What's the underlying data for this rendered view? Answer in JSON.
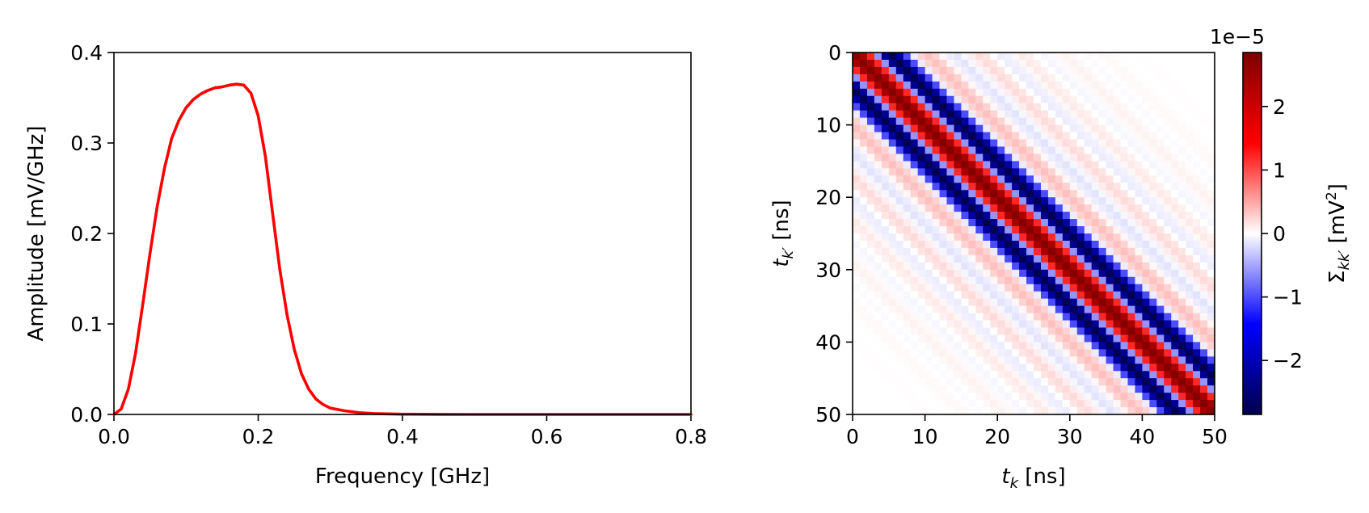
{
  "chart_data": [
    {
      "type": "line",
      "title": "",
      "xlabel": "Frequency [GHz]",
      "ylabel": "Amplitude [mV/GHz]",
      "xlim": [
        0.0,
        0.8
      ],
      "ylim": [
        0.0,
        0.4
      ],
      "xticks": [
        "0.0",
        "0.2",
        "0.4",
        "0.6",
        "0.8"
      ],
      "yticks": [
        "0.0",
        "0.1",
        "0.2",
        "0.3",
        "0.4"
      ],
      "grid": false,
      "series": [
        {
          "color": "#ff0000",
          "x": [
            0.0,
            0.01,
            0.02,
            0.03,
            0.04,
            0.05,
            0.06,
            0.07,
            0.08,
            0.09,
            0.1,
            0.11,
            0.12,
            0.13,
            0.14,
            0.15,
            0.16,
            0.17,
            0.18,
            0.19,
            0.2,
            0.21,
            0.22,
            0.23,
            0.24,
            0.25,
            0.26,
            0.27,
            0.28,
            0.29,
            0.3,
            0.32,
            0.34,
            0.36,
            0.38,
            0.4,
            0.45,
            0.5,
            0.6,
            0.7,
            0.8
          ],
          "y": [
            0.0,
            0.006,
            0.028,
            0.068,
            0.122,
            0.178,
            0.23,
            0.272,
            0.305,
            0.325,
            0.339,
            0.348,
            0.354,
            0.358,
            0.361,
            0.362,
            0.364,
            0.365,
            0.364,
            0.355,
            0.33,
            0.285,
            0.222,
            0.16,
            0.11,
            0.072,
            0.045,
            0.028,
            0.017,
            0.011,
            0.007,
            0.004,
            0.002,
            0.001,
            0.0006,
            0.0003,
            0.0001,
            0.0,
            0.0,
            0.0,
            0.0
          ]
        }
      ]
    },
    {
      "type": "heatmap",
      "title": "",
      "xlabel_base": "t",
      "xlabel_sub": "k",
      "xlabel_unit": " [ns]",
      "ylabel_base": "t",
      "ylabel_sub": "k′",
      "ylabel_unit": " [ns]",
      "xlim": [
        0,
        50
      ],
      "ylim": [
        50,
        0
      ],
      "xticks": [
        "0",
        "10",
        "20",
        "30",
        "40",
        "50"
      ],
      "yticks": [
        "0",
        "10",
        "20",
        "30",
        "40",
        "50"
      ],
      "colormap": "seismic",
      "colorbar": {
        "label_base": "Σ",
        "label_sub": "kk′",
        "label_unit_open": " [mV",
        "label_unit_sup": "2",
        "label_unit_close": "]",
        "scale_label": "1e−5",
        "range": [
          -2.85,
          2.85
        ],
        "ticks": [
          "−2",
          "−1",
          "0",
          "1",
          "2"
        ],
        "tick_values": [
          -2,
          -1,
          0,
          1,
          2
        ]
      },
      "matrix_kind": "toeplitz",
      "lag_values": [
        {
          "lag": 0,
          "value": 2.8
        },
        {
          "lag": 1,
          "value": 2.4
        },
        {
          "lag": 2,
          "value": 1.2
        },
        {
          "lag": 3,
          "value": -0.6
        },
        {
          "lag": 4,
          "value": -2.3
        },
        {
          "lag": 5,
          "value": -2.8
        },
        {
          "lag": 6,
          "value": -2.2
        },
        {
          "lag": 7,
          "value": -1.0
        },
        {
          "lag": 8,
          "value": -0.1
        },
        {
          "lag": 9,
          "value": 0.25
        },
        {
          "lag": 10,
          "value": 0.35
        },
        {
          "lag": 11,
          "value": 0.25
        },
        {
          "lag": 12,
          "value": 0.05
        },
        {
          "lag": 13,
          "value": -0.1
        },
        {
          "lag": 14,
          "value": -0.15
        },
        {
          "lag": 15,
          "value": -0.05
        },
        {
          "lag": 16,
          "value": 0.1
        },
        {
          "lag": 17,
          "value": 0.2
        },
        {
          "lag": 18,
          "value": 0.15
        },
        {
          "lag": 19,
          "value": 0.0
        },
        {
          "lag": 20,
          "value": -0.1
        },
        {
          "lag": 21,
          "value": -0.08
        },
        {
          "lag": 22,
          "value": 0.05
        },
        {
          "lag": 23,
          "value": 0.12
        },
        {
          "lag": 24,
          "value": 0.08
        },
        {
          "lag": 25,
          "value": 0.0
        },
        {
          "lag": 26,
          "value": -0.05
        },
        {
          "lag": 27,
          "value": -0.03
        },
        {
          "lag": 28,
          "value": 0.04
        },
        {
          "lag": 29,
          "value": 0.07
        },
        {
          "lag": 30,
          "value": 0.04
        },
        {
          "lag": 31,
          "value": 0.0
        },
        {
          "lag": 32,
          "value": -0.02
        },
        {
          "lag": 33,
          "value": 0.0
        },
        {
          "lag": 34,
          "value": 0.03
        },
        {
          "lag": 35,
          "value": 0.03
        },
        {
          "lag": 36,
          "value": 0.01
        },
        {
          "lag": 37,
          "value": 0.0
        },
        {
          "lag": 38,
          "value": 0.0
        },
        {
          "lag": 39,
          "value": 0.01
        },
        {
          "lag": 40,
          "value": 0.01
        },
        {
          "lag": 41,
          "value": 0.0
        },
        {
          "lag": 42,
          "value": 0.0
        },
        {
          "lag": 43,
          "value": 0.0
        },
        {
          "lag": 44,
          "value": 0.0
        },
        {
          "lag": 45,
          "value": 0.0
        },
        {
          "lag": 46,
          "value": 0.0
        },
        {
          "lag": 47,
          "value": 0.0
        },
        {
          "lag": 48,
          "value": 0.0
        },
        {
          "lag": 49,
          "value": 0.0
        }
      ]
    }
  ]
}
